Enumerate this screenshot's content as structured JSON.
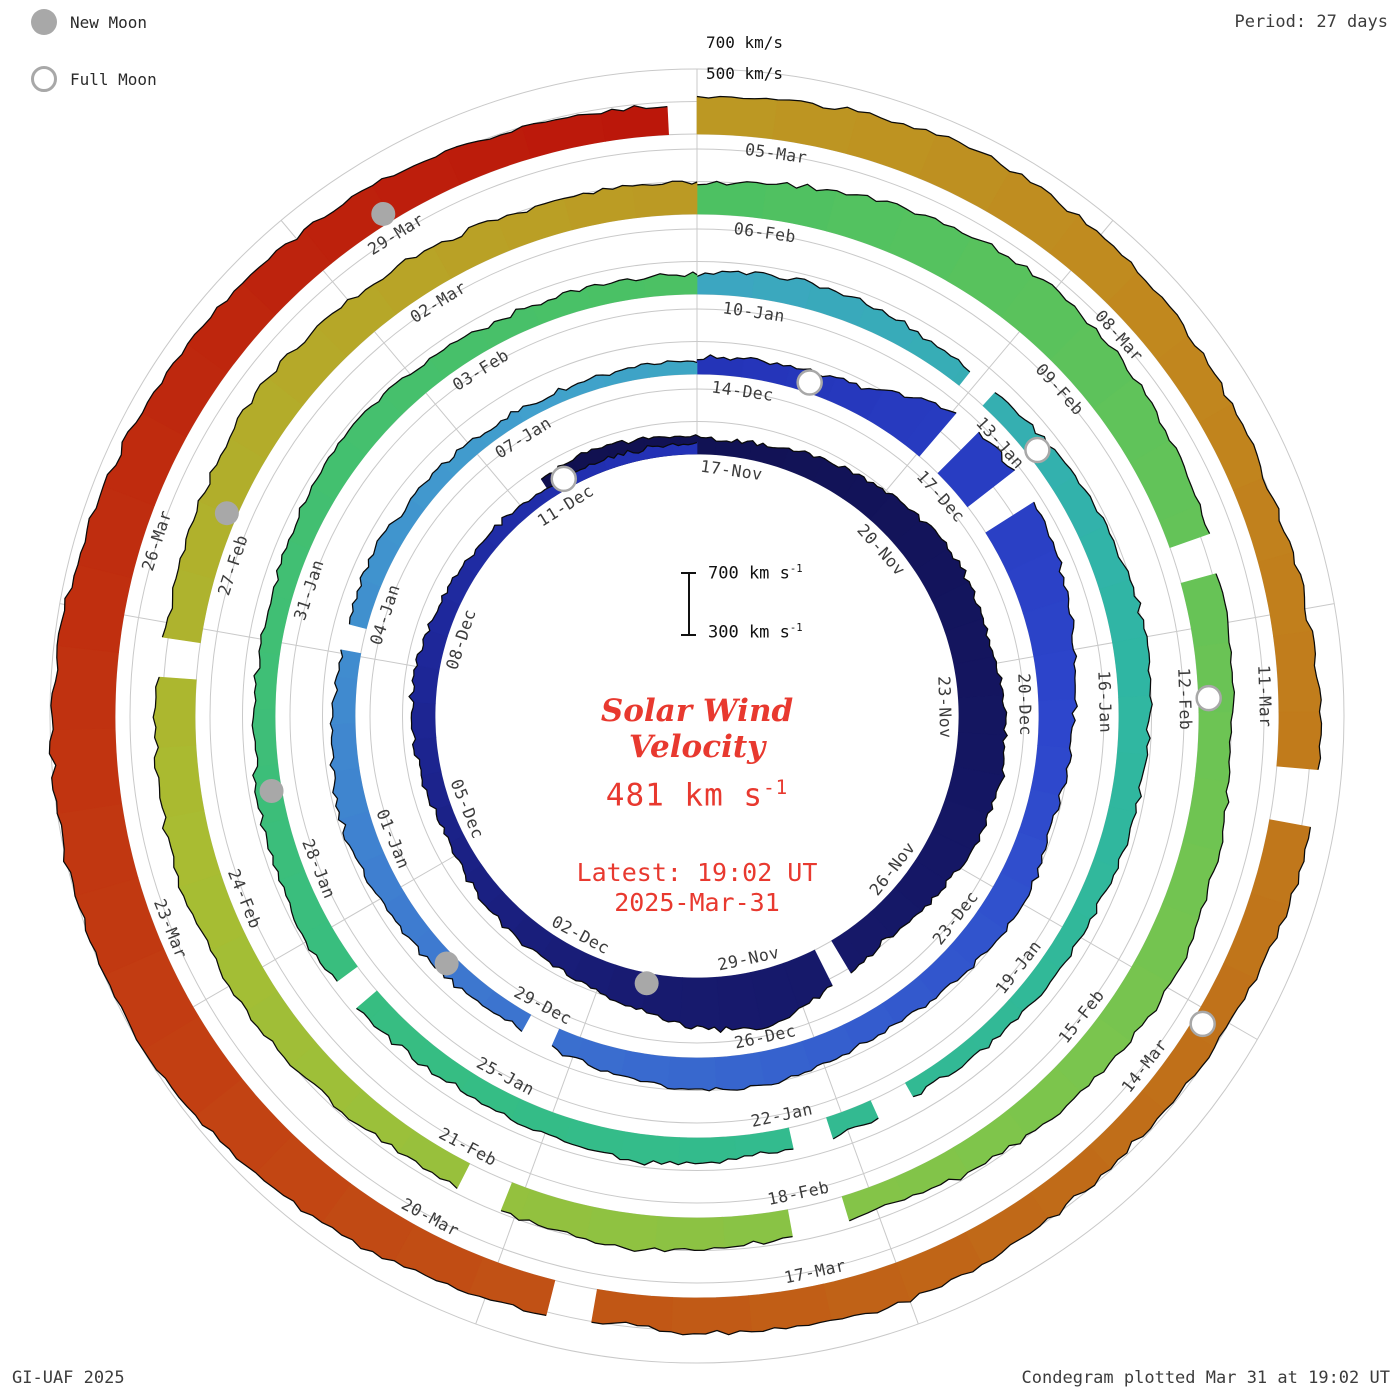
{
  "page": {
    "period_label": "Period: 27 days",
    "credit": "GI-UAF 2025",
    "plotted_note": "Condegram plotted Mar 31 at 19:02 UT"
  },
  "legend": {
    "new_moon_label": "New Moon",
    "full_moon_label": "Full Moon"
  },
  "outer_scale": {
    "top_label": "700 km/s",
    "bottom_label": "500 km/s"
  },
  "center": {
    "scale_top": "700 km s",
    "scale_top_sup": "-1",
    "scale_bottom": "300 km s",
    "scale_bottom_sup": "-1",
    "title_line1": "Solar Wind",
    "title_line2": "Velocity",
    "current_value": "481 km s",
    "current_value_sup": "-1",
    "latest_time": "Latest: 19:02 UT",
    "latest_date": "2025-Mar-31"
  },
  "chart_data": {
    "type": "area",
    "subtype": "condegram-spiral",
    "title": "Solar Wind Velocity",
    "units": "km/s",
    "value_range": [
      300,
      700
    ],
    "period_days": 27,
    "start_date": "2024-Nov-17",
    "latest": {
      "value_kms": 481,
      "time": "19:02 UT",
      "date": "2025-Mar-31"
    },
    "accent_color": "#e8392f",
    "grid_color": "#c9c9c9",
    "label_color": "#3c3c3c",
    "moon_color": "#a8a8a8",
    "color_stops": [
      [
        -3,
        "#10104e"
      ],
      [
        14,
        "#171a6e"
      ],
      [
        26,
        "#2230b4"
      ],
      [
        34,
        "#2d46cc"
      ],
      [
        45,
        "#3f7ed0"
      ],
      [
        52,
        "#41a0cd"
      ],
      [
        60,
        "#2fb6a4"
      ],
      [
        70,
        "#35bd84"
      ],
      [
        81,
        "#4cc163"
      ],
      [
        92,
        "#7fc54b"
      ],
      [
        100,
        "#a8bd32"
      ],
      [
        106,
        "#b9a226"
      ],
      [
        112,
        "#c1871e"
      ],
      [
        119,
        "#c06a18"
      ],
      [
        126,
        "#c23d12"
      ],
      [
        135,
        "#bb150a"
      ]
    ],
    "rings": [
      {
        "start_label": "17-Nov",
        "lead_days": 2.5,
        "labels": [
          "17-Nov",
          "20-Nov",
          "23-Nov",
          "26-Nov",
          "29-Nov",
          "02-Dec",
          "05-Dec",
          "08-Dec",
          "11-Dec"
        ],
        "values_daily": [
          430,
          450,
          410,
          390,
          430,
          470,
          520,
          555,
          540,
          575,
          605,
          580,
          530,
          490,
          545,
          660,
          600,
          520,
          465,
          445,
          420,
          400,
          425,
          450,
          430,
          405,
          385,
          370,
          365,
          360
        ],
        "gaps": [
          [
            11.2,
            11.5
          ]
        ]
      },
      {
        "start_label": "14-Dec",
        "labels": [
          "14-Dec",
          "17-Dec",
          "20-Dec",
          "23-Dec",
          "26-Dec",
          "29-Dec",
          "01-Jan",
          "04-Jan",
          "07-Jan"
        ],
        "values_daily": [
          400,
          420,
          455,
          645,
          665,
          620,
          555,
          505,
          475,
          520,
          485,
          450,
          475,
          505,
          475,
          435,
          405,
          425,
          455,
          480,
          445,
          415,
          430,
          405,
          385,
          365,
          370
        ],
        "gaps": [
          [
            3.05,
            3.35
          ],
          [
            4.0,
            4.25
          ],
          [
            15.3,
            15.65
          ],
          [
            21.1,
            21.35
          ]
        ]
      },
      {
        "start_label": "10-Jan",
        "labels": [
          "10-Jan",
          "13-Jan",
          "16-Jan",
          "19-Jan",
          "22-Jan",
          "25-Jan",
          "28-Jan",
          "31-Jan",
          "03-Feb"
        ],
        "values_daily": [
          425,
          455,
          435,
          405,
          445,
          485,
          515,
          485,
          455,
          430,
          410,
          395,
          420,
          435,
          470,
          445,
          420,
          450,
          480,
          460,
          435,
          415,
          440,
          470,
          450,
          430,
          420
        ],
        "gaps": [
          [
            2.9,
            3.2
          ],
          [
            11.3,
            11.65
          ],
          [
            12.2,
            12.5
          ],
          [
            17.2,
            17.45
          ]
        ]
      },
      {
        "start_label": "06-Feb",
        "labels": [
          "06-Feb",
          "09-Feb",
          "12-Feb",
          "15-Feb",
          "18-Feb",
          "21-Feb",
          "24-Feb",
          "27-Feb",
          "02-Mar"
        ],
        "values_daily": [
          485,
          545,
          605,
          645,
          615,
          565,
          525,
          495,
          535,
          565,
          525,
          485,
          445,
          470,
          515,
          485,
          455,
          490,
          530,
          560,
          545,
          515,
          545,
          575,
          545,
          515,
          495
        ],
        "gaps": [
          [
            5.3,
            5.6
          ],
          [
            12.3,
            12.65
          ],
          [
            15.2,
            15.45
          ],
          [
            20.6,
            20.85
          ]
        ]
      },
      {
        "start_label": "05-Mar",
        "end_day": 26.79,
        "labels": [
          "05-Mar",
          "08-Mar",
          "11-Mar",
          "14-Mar",
          "17-Mar",
          "20-Mar",
          "23-Mar",
          "26-Mar",
          "29-Mar"
        ],
        "values_daily": [
          525,
          565,
          605,
          585,
          545,
          505,
          530,
          565,
          545,
          505,
          475,
          500,
          545,
          525,
          495,
          530,
          585,
          640,
          690,
          705,
          695,
          665,
          625,
          595,
          565,
          525,
          481
        ],
        "gaps": [
          [
            7.15,
            7.45
          ],
          [
            14.3,
            14.55
          ]
        ]
      }
    ],
    "moons": [
      {
        "type": "full",
        "day": -2.2,
        "date": "2024-Nov-15"
      },
      {
        "type": "new",
        "day": 14.3,
        "date": "2024-Dec-01"
      },
      {
        "type": "full",
        "day": 28.4,
        "date": "2024-Dec-15"
      },
      {
        "type": "new",
        "day": 43.9,
        "date": "2024-Dec-30"
      },
      {
        "type": "full",
        "day": 57.9,
        "date": "2025-Jan-13"
      },
      {
        "type": "new",
        "day": 73.5,
        "date": "2025-Jan-29"
      },
      {
        "type": "full",
        "day": 87.6,
        "date": "2025-Feb-12"
      },
      {
        "type": "new",
        "day": 103.0,
        "date": "2025-Feb-28"
      },
      {
        "type": "full",
        "day": 117.1,
        "date": "2025-Mar-14"
      },
      {
        "type": "new",
        "day": 132.6,
        "date": "2025-Mar-29"
      }
    ]
  }
}
